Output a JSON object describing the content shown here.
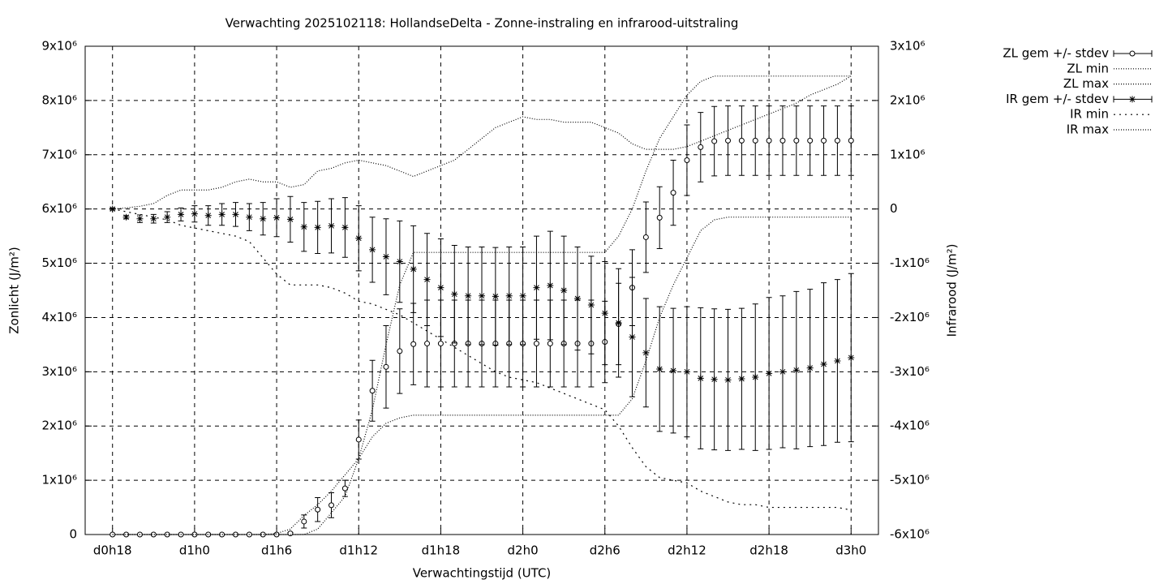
{
  "chart_data": {
    "type": "errorbar",
    "title": "Verwachting 2025102118: HollandseDelta - Zonne-instraling en infrarood-uitstraling",
    "xlabel": "Verwachtingstijd (UTC)",
    "ylabel": "Zonlicht (J/m²)",
    "y2label": "Infrarood (J/m²)",
    "x": [
      18,
      19,
      20,
      21,
      22,
      23,
      24,
      25,
      26,
      27,
      28,
      29,
      30,
      31,
      32,
      33,
      34,
      35,
      36,
      37,
      38,
      39,
      40,
      41,
      42,
      43,
      44,
      45,
      46,
      47,
      48,
      49,
      50,
      51,
      52,
      53,
      54,
      55,
      56,
      57,
      58,
      59,
      60,
      61,
      62,
      63,
      64,
      65,
      66,
      67,
      68,
      69,
      70,
      71,
      72
    ],
    "xlim": [
      16,
      74
    ],
    "xticks": [
      {
        "value": 18,
        "label": "d0h18"
      },
      {
        "value": 24,
        "label": "d1h0"
      },
      {
        "value": 30,
        "label": "d1h6"
      },
      {
        "value": 36,
        "label": "d1h12"
      },
      {
        "value": 42,
        "label": "d1h18"
      },
      {
        "value": 48,
        "label": "d2h0"
      },
      {
        "value": 54,
        "label": "d2h6"
      },
      {
        "value": 60,
        "label": "d2h12"
      },
      {
        "value": 66,
        "label": "d2h18"
      },
      {
        "value": 72,
        "label": "d3h0"
      }
    ],
    "ylim": [
      0,
      9000000
    ],
    "yticks": [
      0,
      {
        "value": 1000000,
        "label": "1x10⁶"
      },
      {
        "value": 2000000,
        "label": "2x10⁶"
      },
      {
        "value": 3000000,
        "label": "3x10⁶"
      },
      {
        "value": 4000000,
        "label": "4x10⁶"
      },
      {
        "value": 5000000,
        "label": "5x10⁶"
      },
      {
        "value": 6000000,
        "label": "6x10⁶"
      },
      {
        "value": 7000000,
        "label": "7x10⁶"
      },
      {
        "value": 8000000,
        "label": "8x10⁶"
      },
      {
        "value": 9000000,
        "label": "9x10⁶"
      }
    ],
    "y2lim": [
      -6000000,
      3000000
    ],
    "y2ticks": [
      {
        "value": -6000000,
        "label": "-6x10⁶"
      },
      {
        "value": -5000000,
        "label": "-5x10⁶"
      },
      {
        "value": -4000000,
        "label": "-4x10⁶"
      },
      {
        "value": -3000000,
        "label": "-3x10⁶"
      },
      {
        "value": -2000000,
        "label": "-2x10⁶"
      },
      {
        "value": -1000000,
        "label": "-1x10⁶"
      },
      0,
      {
        "value": 1000000,
        "label": "1x10⁶"
      },
      {
        "value": 2000000,
        "label": "2x10⁶"
      },
      {
        "value": 3000000,
        "label": "3x10⁶"
      }
    ],
    "grid": true,
    "legend": "outside-top-right",
    "series": [
      {
        "name": "ZL gem +/- stdev",
        "color": "#000000",
        "marker": "circle",
        "values": [
          0,
          0,
          0,
          0,
          0,
          0,
          0,
          0,
          0,
          0,
          0,
          0,
          0,
          20000,
          240000,
          460000,
          540000,
          850000,
          1750000,
          2650000,
          3090000,
          3380000,
          3510000,
          3520000,
          3520000,
          3520000,
          3520000,
          3520000,
          3520000,
          3520000,
          3520000,
          3520000,
          3520000,
          3520000,
          3520000,
          3520000,
          3550000,
          3880000,
          4550000,
          5480000,
          5840000,
          6300000,
          6900000,
          7140000,
          7250000,
          7260000,
          7260000,
          7260000,
          7260000,
          7260000,
          7260000,
          7260000,
          7260000,
          7260000,
          7260000
        ],
        "errors": [
          0,
          0,
          0,
          0,
          0,
          0,
          0,
          0,
          0,
          0,
          0,
          0,
          0,
          20000,
          120000,
          220000,
          230000,
          150000,
          360000,
          560000,
          760000,
          780000,
          750000,
          800000,
          800000,
          800000,
          800000,
          800000,
          800000,
          800000,
          800000,
          800000,
          800000,
          800000,
          800000,
          800000,
          750000,
          750000,
          700000,
          650000,
          570000,
          600000,
          650000,
          640000,
          640000,
          640000,
          640000,
          640000,
          640000,
          640000,
          640000,
          640000,
          640000,
          640000,
          640000
        ]
      },
      {
        "name": "ZL min",
        "color": "#000000",
        "dash": "1,2",
        "values": [
          0,
          0,
          0,
          0,
          0,
          0,
          0,
          0,
          0,
          0,
          0,
          0,
          0,
          0,
          0,
          100000,
          400000,
          700000,
          1400000,
          1800000,
          2050000,
          2150000,
          2200000,
          2200000,
          2200000,
          2200000,
          2200000,
          2200000,
          2200000,
          2200000,
          2200000,
          2200000,
          2200000,
          2200000,
          2200000,
          2200000,
          2200000,
          2200000,
          2500000,
          3200000,
          4000000,
          4600000,
          5100000,
          5600000,
          5800000,
          5850000,
          5850000,
          5850000,
          5850000,
          5850000,
          5850000,
          5850000,
          5850000,
          5850000,
          5850000
        ]
      },
      {
        "name": "ZL max",
        "color": "#000000",
        "dash": "1,2",
        "values": [
          0,
          0,
          0,
          0,
          0,
          0,
          0,
          0,
          0,
          0,
          0,
          0,
          20000,
          100000,
          350000,
          550000,
          800000,
          1100000,
          1400000,
          2300000,
          3500000,
          4600000,
          5200000,
          5200000,
          5200000,
          5200000,
          5200000,
          5200000,
          5200000,
          5200000,
          5200000,
          5200000,
          5200000,
          5200000,
          5200000,
          5200000,
          5200000,
          5500000,
          6000000,
          6700000,
          7300000,
          7700000,
          8100000,
          8350000,
          8450000,
          8450000,
          8450000,
          8450000,
          8450000,
          8450000,
          8450000,
          8450000,
          8450000,
          8450000,
          8450000
        ]
      },
      {
        "name": "IR gem +/- stdev",
        "color": "#000000",
        "marker": "star",
        "axis": "y2",
        "values": [
          0,
          -150000,
          -180000,
          -180000,
          -150000,
          -100000,
          -90000,
          -120000,
          -100000,
          -100000,
          -150000,
          -180000,
          -160000,
          -190000,
          -330000,
          -340000,
          -310000,
          -340000,
          -540000,
          -750000,
          -880000,
          -970000,
          -1110000,
          -1300000,
          -1450000,
          -1570000,
          -1600000,
          -1600000,
          -1610000,
          -1600000,
          -1600000,
          -1450000,
          -1410000,
          -1500000,
          -1650000,
          -1770000,
          -1920000,
          -2100000,
          -2360000,
          -2650000,
          -2950000,
          -2980000,
          -3000000,
          -3120000,
          -3140000,
          -3150000,
          -3130000,
          -3100000,
          -3030000,
          -3000000,
          -2970000,
          -2930000,
          -2860000,
          -2800000,
          -2740000
        ],
        "errors": [
          20000,
          30000,
          70000,
          80000,
          100000,
          120000,
          150000,
          180000,
          200000,
          220000,
          250000,
          300000,
          350000,
          420000,
          450000,
          480000,
          500000,
          550000,
          600000,
          600000,
          700000,
          750000,
          800000,
          850000,
          900000,
          900000,
          900000,
          900000,
          900000,
          900000,
          900000,
          950000,
          1000000,
          1000000,
          950000,
          900000,
          950000,
          1000000,
          1100000,
          1000000,
          1150000,
          1150000,
          1200000,
          1300000,
          1300000,
          1300000,
          1300000,
          1350000,
          1400000,
          1400000,
          1450000,
          1450000,
          1500000,
          1500000,
          1550000
        ]
      },
      {
        "name": "IR min",
        "color": "#000000",
        "dash": "2,5",
        "axis": "y2",
        "values": [
          0,
          -50000,
          -100000,
          -150000,
          -200000,
          -300000,
          -350000,
          -400000,
          -450000,
          -500000,
          -600000,
          -900000,
          -1200000,
          -1400000,
          -1400000,
          -1400000,
          -1450000,
          -1550000,
          -1700000,
          -1750000,
          -1850000,
          -1950000,
          -2100000,
          -2250000,
          -2400000,
          -2550000,
          -2700000,
          -2850000,
          -3000000,
          -3100000,
          -3150000,
          -3200000,
          -3300000,
          -3400000,
          -3500000,
          -3600000,
          -3700000,
          -4000000,
          -4400000,
          -4750000,
          -4950000,
          -5000000,
          -5050000,
          -5200000,
          -5300000,
          -5400000,
          -5450000,
          -5450000,
          -5500000,
          -5500000,
          -5500000,
          -5500000,
          -5500000,
          -5500000,
          -5550000
        ]
      },
      {
        "name": "IR max",
        "color": "#000000",
        "dash": "1,2",
        "axis": "y2",
        "values": [
          0,
          20000,
          50000,
          100000,
          250000,
          350000,
          350000,
          350000,
          400000,
          500000,
          550000,
          500000,
          500000,
          400000,
          450000,
          700000,
          750000,
          850000,
          900000,
          850000,
          800000,
          700000,
          600000,
          700000,
          800000,
          900000,
          1100000,
          1300000,
          1500000,
          1600000,
          1700000,
          1650000,
          1650000,
          1600000,
          1600000,
          1600000,
          1500000,
          1400000,
          1200000,
          1100000,
          1100000,
          1100000,
          1150000,
          1250000,
          1350000,
          1450000,
          1550000,
          1650000,
          1750000,
          1850000,
          1950000,
          2100000,
          2200000,
          2300000,
          2450000
        ]
      }
    ]
  }
}
